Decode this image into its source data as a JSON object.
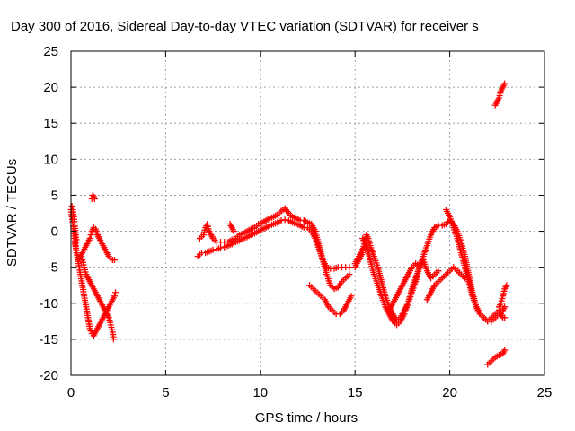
{
  "chart_data": {
    "type": "scatter",
    "title": "Day 300 of 2016, Sidereal Day-to-day VTEC variation (SDTVAR) for receiver s",
    "xlabel": "GPS time / hours",
    "ylabel": "SDTVAR / TECUs",
    "xlim": [
      0,
      25
    ],
    "ylim": [
      -20,
      25
    ],
    "xticks": [
      "0",
      "5",
      "10",
      "15",
      "20",
      "25"
    ],
    "yticks": [
      "-20",
      "-15",
      "-10",
      "-5",
      "0",
      "5",
      "10",
      "15",
      "20",
      "25"
    ],
    "grid": true,
    "marker": "+",
    "color": "#ff0000",
    "series": [
      {
        "points": [
          [
            0.0,
            3.0
          ],
          [
            0.05,
            2.0
          ],
          [
            0.1,
            1.0
          ],
          [
            0.15,
            0.0
          ],
          [
            0.2,
            -1.0
          ],
          [
            0.25,
            -2.0
          ],
          [
            0.3,
            -3.0
          ],
          [
            0.4,
            -4.5
          ],
          [
            0.5,
            -6.0
          ],
          [
            0.6,
            -7.5
          ],
          [
            0.7,
            -9.0
          ],
          [
            0.8,
            -10.5
          ],
          [
            0.9,
            -12.0
          ],
          [
            1.0,
            -13.5
          ],
          [
            1.1,
            -14.2
          ],
          [
            1.2,
            -14.5
          ],
          [
            1.3,
            -14.0
          ],
          [
            1.4,
            -13.5
          ],
          [
            1.5,
            -13.0
          ],
          [
            1.6,
            -12.5
          ],
          [
            1.7,
            -12.0
          ],
          [
            1.8,
            -11.5
          ],
          [
            1.9,
            -11.0
          ],
          [
            2.0,
            -10.5
          ],
          [
            2.1,
            -10.0
          ],
          [
            2.2,
            -9.5
          ],
          [
            2.3,
            -9.0
          ],
          [
            2.35,
            -8.5
          ]
        ]
      },
      {
        "points": [
          [
            0.2,
            -1.5
          ],
          [
            0.3,
            -3.0
          ],
          [
            0.4,
            -4.0
          ],
          [
            0.5,
            -3.5
          ],
          [
            0.6,
            -3.0
          ],
          [
            0.7,
            -2.5
          ],
          [
            0.8,
            -2.0
          ],
          [
            0.9,
            -1.5
          ],
          [
            1.0,
            -1.0
          ],
          [
            1.05,
            -0.5
          ],
          [
            1.1,
            0.0
          ],
          [
            1.2,
            0.5
          ],
          [
            1.3,
            0.3
          ],
          [
            1.4,
            -0.5
          ],
          [
            1.5,
            -1.0
          ],
          [
            1.6,
            -1.5
          ],
          [
            1.7,
            -2.0
          ],
          [
            1.8,
            -2.5
          ],
          [
            1.9,
            -3.0
          ],
          [
            2.0,
            -3.5
          ],
          [
            2.1,
            -3.8
          ],
          [
            2.2,
            -4.0
          ],
          [
            2.3,
            -4.0
          ]
        ]
      },
      {
        "points": [
          [
            1.1,
            4.5
          ],
          [
            1.15,
            5.0
          ],
          [
            1.2,
            4.8
          ],
          [
            1.25,
            4.5
          ]
        ]
      },
      {
        "points": [
          [
            0.6,
            -4.0
          ],
          [
            0.7,
            -5.0
          ],
          [
            0.8,
            -6.0
          ],
          [
            0.9,
            -6.5
          ],
          [
            1.0,
            -7.0
          ],
          [
            1.1,
            -7.5
          ],
          [
            1.2,
            -8.0
          ],
          [
            1.3,
            -8.5
          ],
          [
            1.4,
            -9.0
          ],
          [
            1.5,
            -9.5
          ],
          [
            1.6,
            -10.0
          ],
          [
            1.7,
            -10.5
          ],
          [
            1.8,
            -11.0
          ],
          [
            1.9,
            -11.5
          ],
          [
            2.0,
            -12.0
          ],
          [
            2.1,
            -13.0
          ],
          [
            2.2,
            -14.0
          ],
          [
            2.25,
            -15.0
          ]
        ]
      },
      {
        "points": [
          [
            0.05,
            3.5
          ],
          [
            0.1,
            3.0
          ],
          [
            0.15,
            2.0
          ],
          [
            0.2,
            1.0
          ],
          [
            0.25,
            -0.5
          ],
          [
            0.3,
            -1.5
          ]
        ]
      },
      {
        "points": [
          [
            6.7,
            -3.5
          ],
          [
            6.9,
            -3.0
          ],
          [
            7.1,
            -3.0
          ],
          [
            7.3,
            -2.8
          ],
          [
            7.5,
            -2.6
          ],
          [
            7.7,
            -2.5
          ],
          [
            7.9,
            -2.3
          ],
          [
            8.1,
            -2.2
          ],
          [
            8.3,
            -2.0
          ],
          [
            8.5,
            -1.8
          ],
          [
            8.7,
            -1.5
          ],
          [
            8.9,
            -1.3
          ],
          [
            9.1,
            -1.0
          ],
          [
            9.3,
            -0.8
          ],
          [
            9.5,
            -0.5
          ],
          [
            9.7,
            -0.3
          ],
          [
            9.9,
            0.0
          ],
          [
            10.1,
            0.3
          ],
          [
            10.3,
            0.5
          ],
          [
            10.5,
            0.8
          ],
          [
            10.7,
            1.0
          ],
          [
            10.9,
            1.2
          ],
          [
            11.1,
            1.5
          ],
          [
            11.3,
            1.6
          ],
          [
            11.5,
            1.5
          ],
          [
            11.7,
            1.2
          ],
          [
            11.9,
            1.0
          ],
          [
            12.1,
            0.8
          ],
          [
            12.3,
            0.5
          ],
          [
            12.5,
            0.5
          ],
          [
            12.7,
            0.0
          ],
          [
            12.9,
            -1.0
          ],
          [
            13.1,
            -2.5
          ],
          [
            13.3,
            -4.0
          ],
          [
            13.5,
            -5.0
          ],
          [
            13.7,
            -5.2
          ],
          [
            13.9,
            -5.2
          ],
          [
            14.1,
            -5.0
          ],
          [
            14.3,
            -5.0
          ],
          [
            14.5,
            -5.0
          ],
          [
            14.7,
            -5.0
          ]
        ]
      },
      {
        "points": [
          [
            6.8,
            -1.0
          ],
          [
            7.0,
            -0.5
          ],
          [
            7.1,
            0.5
          ],
          [
            7.2,
            1.0
          ],
          [
            7.3,
            0.0
          ],
          [
            7.5,
            -1.0
          ],
          [
            7.7,
            -1.5
          ],
          [
            7.9,
            -1.5
          ],
          [
            8.1,
            -1.5
          ],
          [
            8.3,
            -1.5
          ],
          [
            8.5,
            -1.2
          ],
          [
            8.7,
            -1.0
          ],
          [
            8.9,
            -0.5
          ],
          [
            9.1,
            -0.3
          ],
          [
            9.3,
            0.0
          ],
          [
            9.5,
            0.3
          ],
          [
            9.7,
            0.5
          ],
          [
            9.9,
            1.0
          ],
          [
            10.1,
            1.2
          ],
          [
            10.3,
            1.5
          ],
          [
            10.5,
            1.8
          ],
          [
            10.7,
            2.0
          ],
          [
            10.9,
            2.3
          ],
          [
            11.1,
            2.8
          ],
          [
            11.3,
            3.2
          ],
          [
            11.5,
            2.5
          ],
          [
            11.7,
            2.0
          ],
          [
            11.9,
            1.8
          ],
          [
            12.1,
            1.5
          ],
          [
            12.3,
            1.5
          ],
          [
            12.5,
            1.2
          ],
          [
            12.7,
            1.0
          ],
          [
            12.9,
            0.0
          ],
          [
            13.1,
            -2.0
          ],
          [
            13.3,
            -4.0
          ],
          [
            13.5,
            -6.0
          ],
          [
            13.7,
            -7.5
          ],
          [
            13.9,
            -8.0
          ],
          [
            14.1,
            -7.8
          ],
          [
            14.3,
            -7.0
          ],
          [
            14.5,
            -6.5
          ],
          [
            14.7,
            -6.0
          ]
        ]
      },
      {
        "points": [
          [
            8.4,
            1.0
          ],
          [
            8.5,
            0.5
          ],
          [
            8.6,
            0.0
          ]
        ]
      },
      {
        "points": [
          [
            12.6,
            -7.5
          ],
          [
            12.8,
            -8.0
          ],
          [
            13.0,
            -8.5
          ],
          [
            13.2,
            -9.0
          ],
          [
            13.4,
            -9.5
          ],
          [
            13.6,
            -10.5
          ],
          [
            13.8,
            -11.0
          ],
          [
            14.0,
            -11.5
          ],
          [
            14.2,
            -11.5
          ],
          [
            14.4,
            -11.0
          ],
          [
            14.6,
            -10.0
          ],
          [
            14.8,
            -9.0
          ]
        ]
      },
      {
        "points": [
          [
            15.0,
            -5.0
          ],
          [
            15.2,
            -4.0
          ],
          [
            15.4,
            -3.0
          ],
          [
            15.5,
            -1.5
          ],
          [
            15.6,
            -0.5
          ],
          [
            15.7,
            -1.0
          ],
          [
            15.8,
            -2.0
          ],
          [
            16.0,
            -3.5
          ],
          [
            16.2,
            -5.0
          ],
          [
            16.4,
            -7.0
          ],
          [
            16.6,
            -9.0
          ],
          [
            16.8,
            -10.5
          ],
          [
            17.0,
            -11.5
          ],
          [
            17.2,
            -12.5
          ],
          [
            17.4,
            -12.0
          ],
          [
            17.6,
            -11.0
          ],
          [
            17.8,
            -10.0
          ],
          [
            18.0,
            -8.5
          ],
          [
            18.2,
            -7.0
          ],
          [
            18.4,
            -5.0
          ],
          [
            18.6,
            -3.5
          ],
          [
            18.8,
            -2.0
          ],
          [
            19.0,
            -0.5
          ],
          [
            19.2,
            0.5
          ],
          [
            19.4,
            0.8
          ],
          [
            19.6,
            0.8
          ],
          [
            19.8,
            1.0
          ],
          [
            20.0,
            1.5
          ],
          [
            20.2,
            1.0
          ],
          [
            20.4,
            0.0
          ],
          [
            20.6,
            -1.5
          ],
          [
            20.8,
            -3.5
          ],
          [
            21.0,
            -6.0
          ],
          [
            21.2,
            -8.5
          ],
          [
            21.4,
            -10.5
          ],
          [
            21.6,
            -11.5
          ],
          [
            21.8,
            -12.0
          ],
          [
            22.0,
            -12.5
          ],
          [
            22.2,
            -12.5
          ],
          [
            22.4,
            -12.0
          ],
          [
            22.6,
            -11.5
          ],
          [
            22.8,
            -11.0
          ],
          [
            22.9,
            -10.5
          ]
        ]
      },
      {
        "points": [
          [
            15.4,
            -1.0
          ],
          [
            15.6,
            -2.0
          ],
          [
            15.8,
            -4.0
          ],
          [
            16.0,
            -6.0
          ],
          [
            16.2,
            -7.5
          ],
          [
            16.4,
            -9.0
          ],
          [
            16.6,
            -10.5
          ],
          [
            16.8,
            -11.5
          ],
          [
            17.0,
            -12.5
          ],
          [
            17.2,
            -13.0
          ],
          [
            17.4,
            -12.5
          ],
          [
            17.6,
            -11.5
          ],
          [
            17.8,
            -10.0
          ],
          [
            18.0,
            -8.0
          ],
          [
            18.2,
            -6.5
          ],
          [
            18.4,
            -5.0
          ],
          [
            18.6,
            -4.0
          ],
          [
            18.8,
            -5.5
          ],
          [
            19.0,
            -6.5
          ],
          [
            19.2,
            -6.0
          ],
          [
            19.4,
            -5.5
          ]
        ]
      },
      {
        "points": [
          [
            15.0,
            -4.5
          ],
          [
            15.2,
            -3.5
          ],
          [
            15.4,
            -2.5
          ],
          [
            15.6,
            -2.0
          ],
          [
            15.8,
            -2.5
          ]
        ]
      },
      {
        "points": [
          [
            16.8,
            -11.0
          ],
          [
            17.0,
            -10.0
          ],
          [
            17.2,
            -9.0
          ],
          [
            17.4,
            -8.0
          ],
          [
            17.6,
            -7.0
          ],
          [
            17.8,
            -6.0
          ],
          [
            18.0,
            -5.0
          ],
          [
            18.2,
            -4.5
          ],
          [
            18.4,
            -4.8
          ]
        ]
      },
      {
        "points": [
          [
            18.8,
            -9.5
          ],
          [
            19.0,
            -8.5
          ],
          [
            19.2,
            -7.5
          ],
          [
            19.4,
            -7.0
          ],
          [
            19.6,
            -6.5
          ],
          [
            19.8,
            -6.0
          ],
          [
            20.0,
            -5.5
          ],
          [
            20.2,
            -5.0
          ],
          [
            20.4,
            -5.5
          ],
          [
            20.6,
            -6.0
          ],
          [
            20.8,
            -6.5
          ]
        ]
      },
      {
        "points": [
          [
            19.8,
            3.0
          ],
          [
            20.0,
            2.0
          ],
          [
            20.2,
            0.5
          ],
          [
            20.4,
            -1.0
          ],
          [
            20.6,
            -3.0
          ],
          [
            20.8,
            -5.0
          ],
          [
            21.0,
            -7.0
          ],
          [
            21.2,
            -9.0
          ],
          [
            21.4,
            -10.5
          ],
          [
            21.6,
            -11.5
          ],
          [
            21.8,
            -12.0
          ],
          [
            22.0,
            -12.5
          ],
          [
            22.2,
            -12.0
          ],
          [
            22.4,
            -11.5
          ],
          [
            22.6,
            -11.0
          ],
          [
            22.8,
            -12.0
          ],
          [
            22.9,
            -12.0
          ]
        ]
      },
      {
        "points": [
          [
            22.6,
            -10.5
          ],
          [
            22.7,
            -10.0
          ],
          [
            22.8,
            -9.0
          ],
          [
            22.9,
            -8.0
          ],
          [
            23.0,
            -7.5
          ]
        ]
      },
      {
        "points": [
          [
            22.0,
            -18.5
          ],
          [
            22.2,
            -18.0
          ],
          [
            22.4,
            -17.5
          ],
          [
            22.6,
            -17.2
          ],
          [
            22.8,
            -17.0
          ],
          [
            22.9,
            -16.5
          ]
        ]
      },
      {
        "points": [
          [
            22.4,
            17.5
          ],
          [
            22.5,
            18.0
          ],
          [
            22.6,
            18.5
          ],
          [
            22.7,
            19.5
          ],
          [
            22.8,
            20.0
          ],
          [
            22.9,
            20.5
          ]
        ]
      }
    ]
  }
}
